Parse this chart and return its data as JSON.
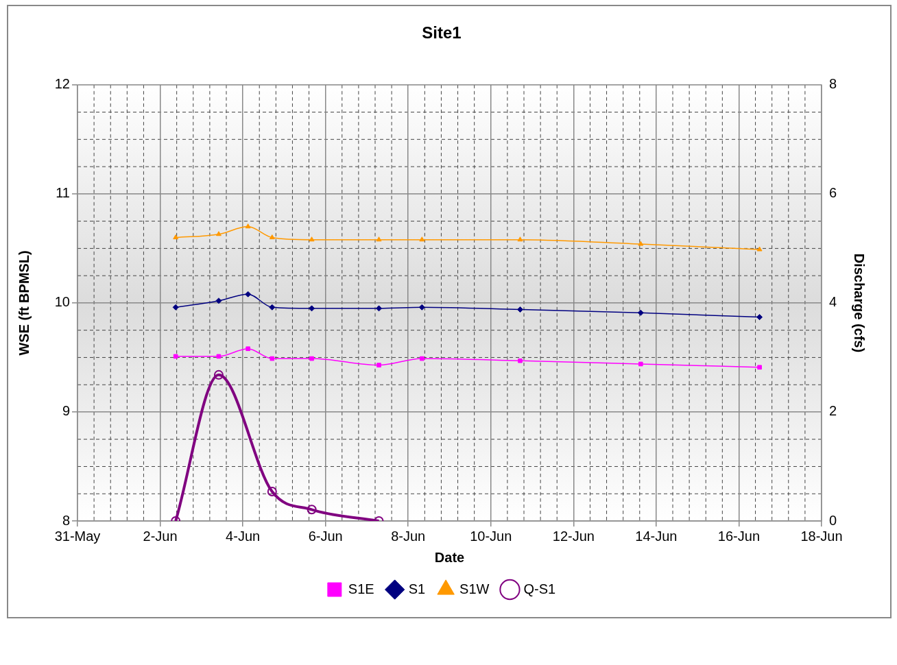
{
  "chart_data": {
    "type": "line",
    "title": "Site1",
    "xlabel": "Date",
    "ylabel": "WSE (ft BPMSL)",
    "y2label": "Discharge (cfs)",
    "x": [
      "--06-02T09:00",
      "--06-03T10:00",
      "--06-04T03:00",
      "--06-04T17:00",
      "--06-05T16:00",
      "--06-07T07:00",
      "--06-08T08:00",
      "--06-10T17:00",
      "--06-13T15:00",
      "--06-16T12:00"
    ],
    "xlim": [
      "--05-31",
      "--06-18"
    ],
    "xticks": [
      {
        "value": "--05-31",
        "label": "31-May"
      },
      {
        "value": "--06-02",
        "label": "2-Jun"
      },
      {
        "value": "--06-04",
        "label": "4-Jun"
      },
      {
        "value": "--06-06",
        "label": "6-Jun"
      },
      {
        "value": "--06-08",
        "label": "8-Jun"
      },
      {
        "value": "--06-10",
        "label": "10-Jun"
      },
      {
        "value": "--06-12",
        "label": "12-Jun"
      },
      {
        "value": "--06-14",
        "label": "14-Jun"
      },
      {
        "value": "--06-16",
        "label": "16-Jun"
      },
      {
        "value": "--06-18",
        "label": "18-Jun"
      }
    ],
    "ylim": [
      8,
      12
    ],
    "yticks": [
      8,
      9,
      10,
      11,
      12
    ],
    "y2lim": [
      0,
      8
    ],
    "y2ticks": [
      0,
      2,
      4,
      6,
      8
    ],
    "grid": true,
    "legend": "bottom",
    "series": [
      {
        "name": "S1E",
        "color": "#ff00ff",
        "marker": "square",
        "values": [
          9.51,
          9.51,
          9.58,
          9.49,
          9.49,
          9.43,
          9.49,
          9.47,
          9.44,
          9.41
        ]
      },
      {
        "name": "S1",
        "color": "#000080",
        "marker": "diamond",
        "values": [
          9.96,
          10.02,
          10.08,
          9.96,
          9.95,
          9.95,
          9.96,
          9.94,
          9.91,
          9.87
        ]
      },
      {
        "name": "S1W",
        "color": "#ff9900",
        "marker": "triangle",
        "values": [
          10.6,
          10.63,
          10.7,
          10.6,
          10.58,
          10.58,
          10.58,
          10.58,
          10.54,
          10.49
        ]
      },
      {
        "name": "Q-S1",
        "color": "#800080",
        "marker": "circle",
        "axis": "y2",
        "x": [
          "--06-02T09:00",
          "--06-03T10:00",
          "--06-04T17:00",
          "--06-05T16:00",
          "--06-07T07:00"
        ],
        "values": [
          0,
          2.68,
          0.54,
          0.21,
          0
        ]
      }
    ]
  }
}
